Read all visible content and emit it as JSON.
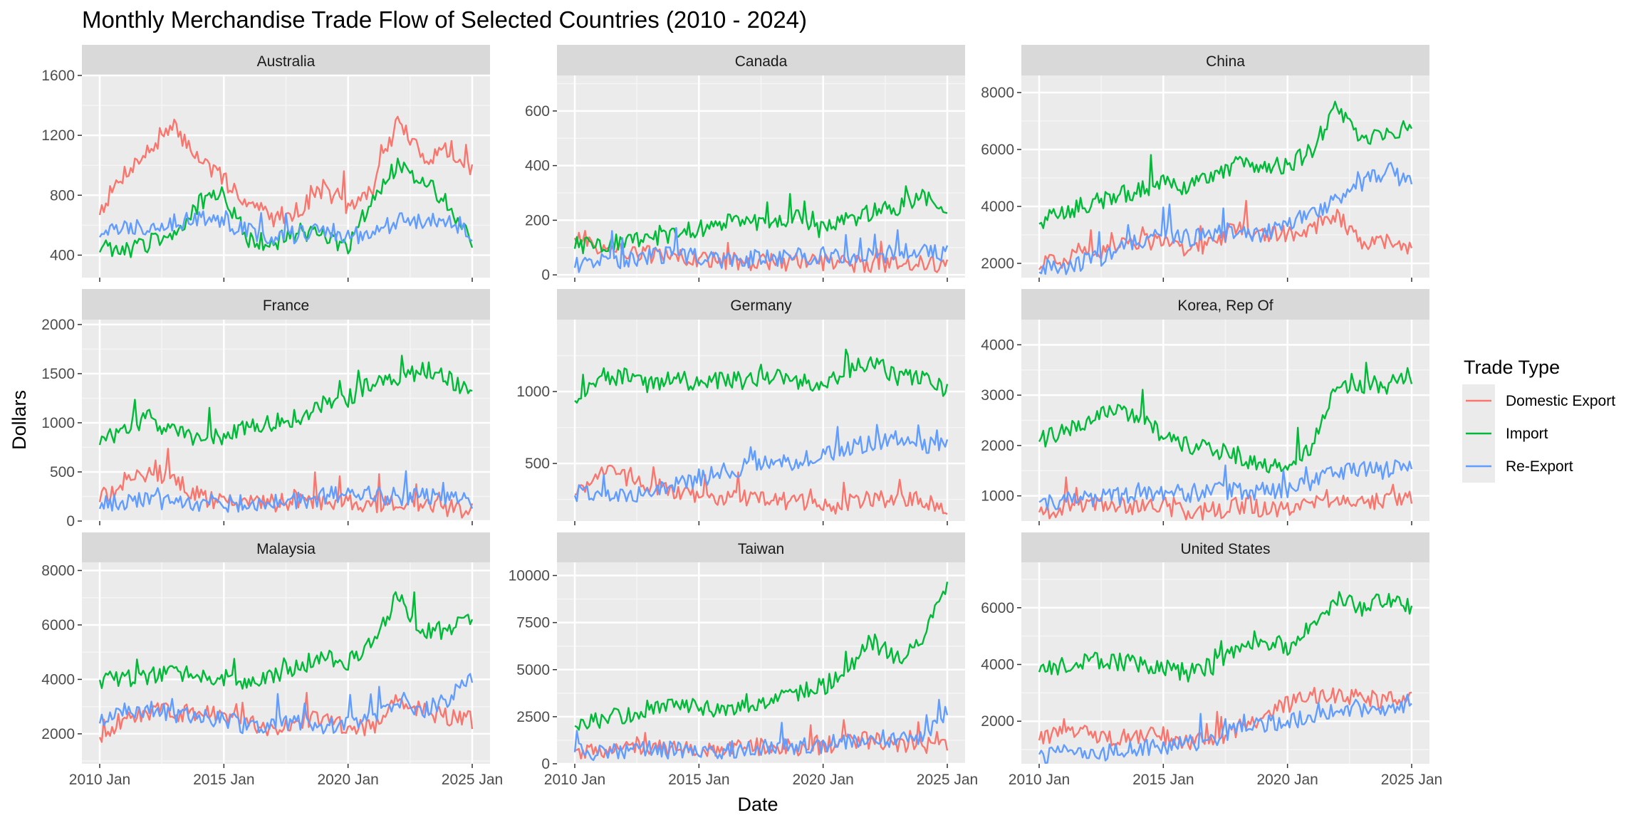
{
  "chart_data": {
    "type": "line",
    "title": "Monthly Merchandise Trade Flow of Selected Countries (2010 - 2024)",
    "xlabel": "Date",
    "ylabel": "Dollars",
    "x_ticks": [
      "2010 Jan",
      "2015 Jan",
      "2020 Jan",
      "2025 Jan"
    ],
    "x_range": [
      "2010-01",
      "2025-01"
    ],
    "grid": true,
    "legend": {
      "title": "Trade Type",
      "placement": "right",
      "entries": [
        {
          "name": "Domestic Export",
          "color": "#F8766D"
        },
        {
          "name": "Import",
          "color": "#00BA38"
        },
        {
          "name": "Re-Export",
          "color": "#619CFF"
        }
      ]
    },
    "series_anchor_years": [
      2010,
      2011,
      2012,
      2013,
      2014,
      2015,
      2016,
      2017,
      2018,
      2019,
      2020,
      2021,
      2022,
      2023,
      2024,
      2025
    ],
    "panels": [
      {
        "name": "Australia",
        "ylim": [
          250,
          1600
        ],
        "yticks": [
          400,
          800,
          1200,
          1600
        ],
        "series": [
          {
            "name": "Domestic Export",
            "values": [
              700,
              950,
              1100,
              1250,
              1050,
              900,
              750,
              650,
              700,
              850,
              700,
              850,
              1300,
              1050,
              1100,
              950
            ]
          },
          {
            "name": "Import",
            "values": [
              450,
              420,
              480,
              550,
              750,
              800,
              500,
              480,
              560,
              520,
              450,
              800,
              1000,
              900,
              750,
              500
            ]
          },
          {
            "name": "Re-Export",
            "values": [
              550,
              580,
              600,
              620,
              650,
              620,
              560,
              520,
              540,
              580,
              520,
              560,
              620,
              620,
              640,
              520
            ]
          }
        ]
      },
      {
        "name": "Canada",
        "ylim": [
          -10,
          730
        ],
        "yticks": [
          0,
          200,
          400,
          600
        ],
        "series": [
          {
            "name": "Domestic Export",
            "values": [
              150,
              100,
              85,
              75,
              65,
              55,
              50,
              45,
              45,
              50,
              45,
              40,
              40,
              45,
              40,
              40
            ]
          },
          {
            "name": "Import",
            "values": [
              110,
              110,
              125,
              135,
              150,
              170,
              190,
              195,
              200,
              210,
              160,
              200,
              230,
              250,
              280,
              250
            ]
          },
          {
            "name": "Re-Export",
            "values": [
              40,
              50,
              55,
              65,
              80,
              60,
              55,
              55,
              60,
              65,
              70,
              65,
              70,
              80,
              85,
              75
            ]
          }
        ]
      },
      {
        "name": "China",
        "ylim": [
          1500,
          8600
        ],
        "yticks": [
          2000,
          4000,
          6000,
          8000
        ],
        "series": [
          {
            "name": "Domestic Export",
            "values": [
              1900,
              2100,
              2300,
              2600,
              2800,
              2700,
              2400,
              2800,
              3300,
              3100,
              3000,
              3300,
              3600,
              2800,
              2800,
              2400
            ]
          },
          {
            "name": "Import",
            "values": [
              3500,
              3800,
              4100,
              4300,
              4600,
              4800,
              4700,
              5000,
              5500,
              5400,
              5400,
              6000,
              7500,
              6300,
              6500,
              6800
            ]
          },
          {
            "name": "Re-Export",
            "values": [
              1800,
              1900,
              2100,
              2300,
              2800,
              3000,
              2900,
              3000,
              3200,
              3000,
              3400,
              3800,
              4200,
              4800,
              5300,
              4800
            ]
          }
        ]
      },
      {
        "name": "France",
        "ylim": [
          0,
          2050
        ],
        "yticks": [
          0,
          500,
          1000,
          1500,
          2000
        ],
        "series": [
          {
            "name": "Domestic Export",
            "values": [
              220,
              400,
              500,
              450,
              250,
              200,
              180,
              180,
              200,
              200,
              180,
              180,
              160,
              150,
              140,
              110
            ]
          },
          {
            "name": "Import",
            "values": [
              800,
              950,
              1050,
              900,
              850,
              850,
              950,
              1000,
              1050,
              1200,
              1250,
              1400,
              1400,
              1550,
              1450,
              1300
            ]
          },
          {
            "name": "Re-Export",
            "values": [
              150,
              200,
              220,
              200,
              190,
              180,
              180,
              190,
              200,
              250,
              280,
              260,
              250,
              240,
              230,
              180
            ]
          }
        ]
      },
      {
        "name": "Germany",
        "ylim": [
          100,
          1500
        ],
        "yticks": [
          500,
          1000
        ],
        "series": [
          {
            "name": "Domestic Export",
            "values": [
              300,
              450,
              400,
              350,
              300,
              280,
              250,
              260,
              240,
              230,
              200,
              220,
              250,
              260,
              250,
              200
            ]
          },
          {
            "name": "Import",
            "values": [
              950,
              1100,
              1100,
              1050,
              1100,
              1050,
              1080,
              1070,
              1100,
              1080,
              1050,
              1150,
              1200,
              1100,
              1100,
              1000
            ]
          },
          {
            "name": "Re-Export",
            "values": [
              290,
              300,
              280,
              300,
              350,
              400,
              440,
              480,
              500,
              520,
              560,
              600,
              650,
              680,
              620,
              650
            ]
          }
        ]
      },
      {
        "name": "Korea, Rep Of",
        "ylim": [
          500,
          4500
        ],
        "yticks": [
          1000,
          2000,
          3000,
          4000
        ],
        "series": [
          {
            "name": "Domestic Export",
            "values": [
              700,
              750,
              800,
              850,
              800,
              750,
              700,
              700,
              800,
              750,
              750,
              800,
              950,
              900,
              900,
              1000
            ]
          },
          {
            "name": "Import",
            "values": [
              2100,
              2300,
              2500,
              2700,
              2500,
              2200,
              2000,
              1900,
              1800,
              1600,
              1600,
              2000,
              3200,
              3200,
              3200,
              3400
            ]
          },
          {
            "name": "Re-Export",
            "values": [
              900,
              900,
              950,
              1000,
              1000,
              1050,
              1050,
              1100,
              1100,
              1100,
              1100,
              1300,
              1500,
              1500,
              1500,
              1600
            ]
          }
        ]
      },
      {
        "name": "Malaysia",
        "ylim": [
          900,
          8300
        ],
        "yticks": [
          2000,
          4000,
          6000,
          8000
        ],
        "series": [
          {
            "name": "Domestic Export",
            "values": [
              1900,
              2600,
              2800,
              2800,
              2700,
              2700,
              2400,
              2200,
              2400,
              2600,
              2200,
              2200,
              3200,
              2800,
              2600,
              2500
            ]
          },
          {
            "name": "Import",
            "values": [
              4000,
              4000,
              4100,
              4200,
              4100,
              4100,
              3800,
              4100,
              4500,
              4800,
              4600,
              5500,
              7000,
              5800,
              5800,
              6400
            ]
          },
          {
            "name": "Re-Export",
            "values": [
              2400,
              2800,
              2900,
              2700,
              2700,
              2500,
              2300,
              2300,
              2400,
              2300,
              2300,
              2600,
              3300,
              2900,
              3300,
              4000
            ]
          }
        ]
      },
      {
        "name": "Taiwan",
        "ylim": [
          0,
          10700
        ],
        "yticks": [
          0,
          2500,
          5000,
          7500,
          10000
        ],
        "series": [
          {
            "name": "Domestic Export",
            "values": [
              700,
              800,
              850,
              900,
              850,
              800,
              800,
              900,
              950,
              900,
              950,
              1100,
              1300,
              1000,
              900,
              1100
            ]
          },
          {
            "name": "Import",
            "values": [
              2000,
              2300,
              2600,
              3000,
              3300,
              3000,
              2900,
              3100,
              3500,
              3800,
              4100,
              5000,
              6500,
              5500,
              6500,
              9500
            ]
          },
          {
            "name": "Re-Export",
            "values": [
              600,
              650,
              700,
              750,
              750,
              700,
              750,
              800,
              900,
              950,
              1000,
              1200,
              1500,
              1300,
              1500,
              2800
            ]
          }
        ]
      },
      {
        "name": "United States",
        "ylim": [
          500,
          7600
        ],
        "yticks": [
          2000,
          4000,
          6000
        ],
        "series": [
          {
            "name": "Domestic Export",
            "values": [
              1300,
              1800,
              1500,
              1400,
              1500,
              1500,
              1300,
              1400,
              1700,
              2100,
              2600,
              2800,
              2900,
              2800,
              2700,
              3000
            ]
          },
          {
            "name": "Import",
            "values": [
              3700,
              4000,
              4200,
              4100,
              4000,
              3900,
              3700,
              3900,
              4500,
              4900,
              4600,
              5400,
              6300,
              6000,
              6400,
              6000
            ]
          },
          {
            "name": "Re-Export",
            "values": [
              800,
              850,
              850,
              900,
              1000,
              1100,
              1200,
              1400,
              1700,
              1900,
              2000,
              2200,
              2400,
              2400,
              2400,
              2700
            ]
          }
        ]
      }
    ]
  }
}
